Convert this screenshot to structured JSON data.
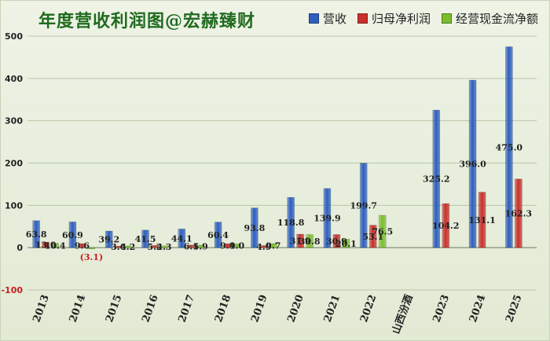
{
  "chart_data": {
    "type": "bar",
    "title": "年度营收利润图@宏赫臻财",
    "xlabel": "",
    "ylabel": "",
    "ylim": [
      -100,
      500
    ],
    "yticks": [
      -100,
      0,
      100,
      200,
      300,
      400,
      500
    ],
    "grid": true,
    "legend_position": "top-right",
    "categories": [
      "2013",
      "2014",
      "2015",
      "2016",
      "2017",
      "2018",
      "2019",
      "2020",
      "2021",
      "2022",
      "山西汾酒",
      "2023",
      "2024",
      "2025"
    ],
    "series": [
      {
        "name": "营收",
        "color": "#2e5fbf",
        "values": [
          63.8,
          60.9,
          39.2,
          41.5,
          44.1,
          60.4,
          93.8,
          118.8,
          139.9,
          199.7,
          null,
          325.2,
          396.0,
          475.0
        ],
        "labels": [
          "63.8",
          "60.9",
          "39.2",
          "41.5",
          "44.1",
          "60.4",
          "93.8",
          "118.8",
          "139.9",
          "199.7",
          "",
          "325.2",
          "396.0",
          "475.0"
        ]
      },
      {
        "name": "归母净利润",
        "color": "#c9302c",
        "values": [
          13.0,
          9.6,
          3.6,
          5.2,
          6.1,
          9.4,
          4.9,
          31.9,
          30.9,
          53.1,
          null,
          104.2,
          131.1,
          162.3
        ],
        "labels": [
          "13.0",
          "9.6",
          "3.6",
          "5.2",
          "6.1",
          "9.4",
          "4.9",
          "31.9",
          "30.9",
          "53.1",
          "",
          "104.2",
          "131.1",
          "162.3"
        ]
      },
      {
        "name": "经营现金流净额",
        "color": "#7cbd2e",
        "values": [
          10.4,
          -3.1,
          4.2,
          4.3,
          5.9,
          9.0,
          9.7,
          30.8,
          20.1,
          76.5,
          null,
          null,
          null,
          null
        ],
        "labels": [
          "10.4",
          "(3.1)",
          "4.2",
          "4.3",
          "5.9",
          "9.0",
          "9.7",
          "30.8",
          "20.1",
          "76.5",
          "",
          "",
          "",
          ""
        ]
      }
    ]
  }
}
